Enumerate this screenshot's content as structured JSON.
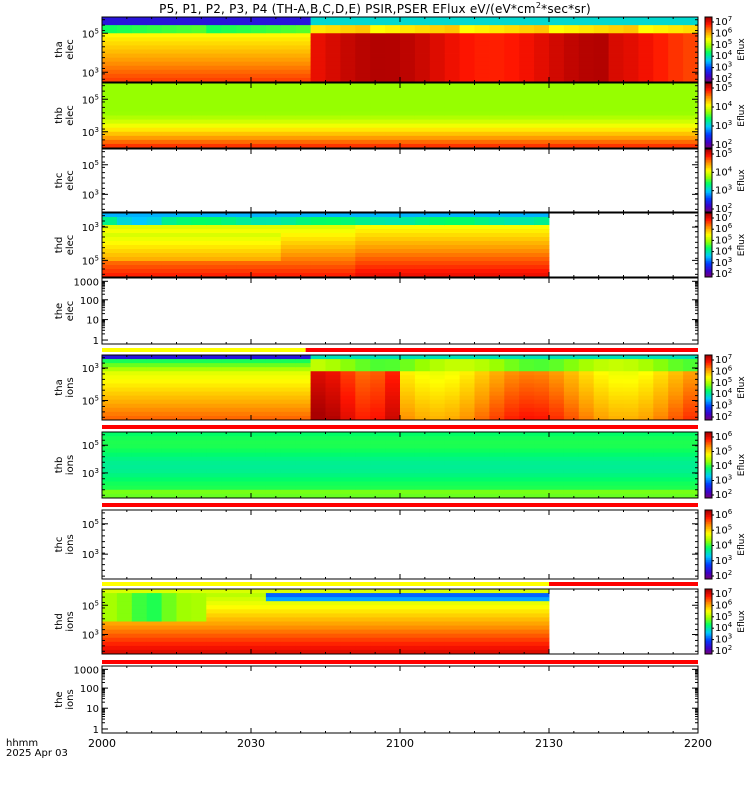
{
  "title": "P5, P1, P2, P3, P4 (TH-A,B,C,D,E) PSIR,PSER EFlux eV/(eV*cm",
  "title_sup": "2",
  "title_tail": "*sec*sr)",
  "footer": {
    "hhmm": "hhmm",
    "date": "2025 Apr 03"
  },
  "chart_data": {
    "type": "heatmap",
    "x_ticks": [
      "2000",
      "2030",
      "2100",
      "2130",
      "2200"
    ],
    "x_range_minutes": [
      0,
      120
    ],
    "colorbar_label": "Eflux",
    "panels": [
      {
        "name": "tha elec",
        "type": "spectrogram",
        "ylabel": [
          "tha",
          "elec"
        ],
        "yticks": [
          {
            "base": "10",
            "exp": "5"
          },
          {
            "base": "10",
            "exp": "3"
          }
        ],
        "data_end": 120,
        "step": 30,
        "colorbar": [
          "10^2",
          "10^3",
          "10^4",
          "10^5",
          "10^6",
          "10^7"
        ]
      },
      {
        "name": "thb elec",
        "type": "spectrogram",
        "ylabel": [
          "thb",
          "elec"
        ],
        "yticks": [
          {
            "base": "10",
            "exp": "5"
          },
          {
            "base": "10",
            "exp": "3"
          }
        ],
        "data_end": 120,
        "colorbar": [
          "10^2",
          "10^3",
          "10^4",
          "10^5"
        ]
      },
      {
        "name": "thc elec",
        "type": "spectrogram",
        "ylabel": [
          "thc",
          "elec"
        ],
        "yticks": [
          {
            "base": "10",
            "exp": "5"
          },
          {
            "base": "10",
            "exp": "3"
          }
        ],
        "data_end": 0,
        "colorbar": [
          "10^2",
          "10^3",
          "10^4",
          "10^5"
        ]
      },
      {
        "name": "thd elec",
        "type": "spectrogram",
        "ylabel": [
          "thd",
          "elec"
        ],
        "yticks": [
          {
            "base": "10",
            "exp": "3"
          },
          {
            "base": "10",
            "exp": "5"
          }
        ],
        "data_end": 89,
        "colorbar": [
          "10^2",
          "10^3",
          "10^4",
          "10^5",
          "10^6",
          "10^7"
        ]
      },
      {
        "name": "the elec",
        "type": "empty-log",
        "ylabel": [
          "the",
          "elec"
        ],
        "yticks": [
          {
            "base": "1000"
          },
          {
            "base": "100"
          },
          {
            "base": "10"
          },
          {
            "base": "1"
          }
        ]
      },
      {
        "name": "tha ions",
        "type": "spectrogram",
        "ylabel": [
          "tha",
          "ions"
        ],
        "yticks": [
          {
            "base": "10",
            "exp": "3"
          },
          {
            "base": "10",
            "exp": "5"
          }
        ],
        "data_end": 120,
        "step": 30,
        "colorbar": [
          "10^2",
          "10^3",
          "10^4",
          "10^5",
          "10^6",
          "10^7"
        ]
      },
      {
        "name": "thb ions",
        "type": "spectrogram",
        "ylabel": [
          "thb",
          "ions"
        ],
        "yticks": [
          {
            "base": "10",
            "exp": "5"
          },
          {
            "base": "10",
            "exp": "3"
          }
        ],
        "data_end": 120,
        "colorbar": [
          "10^2",
          "10^3",
          "10^4",
          "10^5",
          "10^6"
        ]
      },
      {
        "name": "thc ions",
        "type": "spectrogram",
        "ylabel": [
          "thc",
          "ions"
        ],
        "yticks": [
          {
            "base": "10",
            "exp": "5"
          },
          {
            "base": "10",
            "exp": "3"
          }
        ],
        "data_end": 0,
        "colorbar": [
          "10^2",
          "10^3",
          "10^4",
          "10^5",
          "10^6"
        ]
      },
      {
        "name": "thd ions",
        "type": "spectrogram",
        "ylabel": [
          "thd",
          "ions"
        ],
        "yticks": [
          {
            "base": "10",
            "exp": "5"
          },
          {
            "base": "10",
            "exp": "3"
          }
        ],
        "data_end": 89,
        "colorbar": [
          "10^2",
          "10^3",
          "10^4",
          "10^5",
          "10^6",
          "10^7"
        ]
      },
      {
        "name": "the ions",
        "type": "empty-log",
        "ylabel": [
          "the",
          "ions"
        ],
        "yticks": [
          {
            "base": "1000"
          },
          {
            "base": "100"
          },
          {
            "base": "10"
          },
          {
            "base": "1"
          }
        ]
      }
    ],
    "mode_bars": [
      {
        "name": "elec bar",
        "segments": [
          {
            "from": 0,
            "to": 41,
            "color": "#ffff00"
          },
          {
            "from": 41,
            "to": 120,
            "color": "#ff0000"
          }
        ]
      },
      {
        "name": "tha ions bar",
        "segments": [
          {
            "from": 0,
            "to": 120,
            "color": "#ff0000"
          }
        ]
      },
      {
        "name": "thb ions bar",
        "segments": [
          {
            "from": 0,
            "to": 120,
            "color": "#ff0000"
          }
        ]
      },
      {
        "name": "thd ions bar top",
        "segments": [
          {
            "from": 0,
            "to": 90,
            "color": "#ffff00"
          },
          {
            "from": 90,
            "to": 120,
            "color": "#ff0000"
          }
        ]
      },
      {
        "name": "thd ions bar bottom",
        "segments": [
          {
            "from": 0,
            "to": 120,
            "color": "#ff0000"
          }
        ]
      }
    ]
  }
}
